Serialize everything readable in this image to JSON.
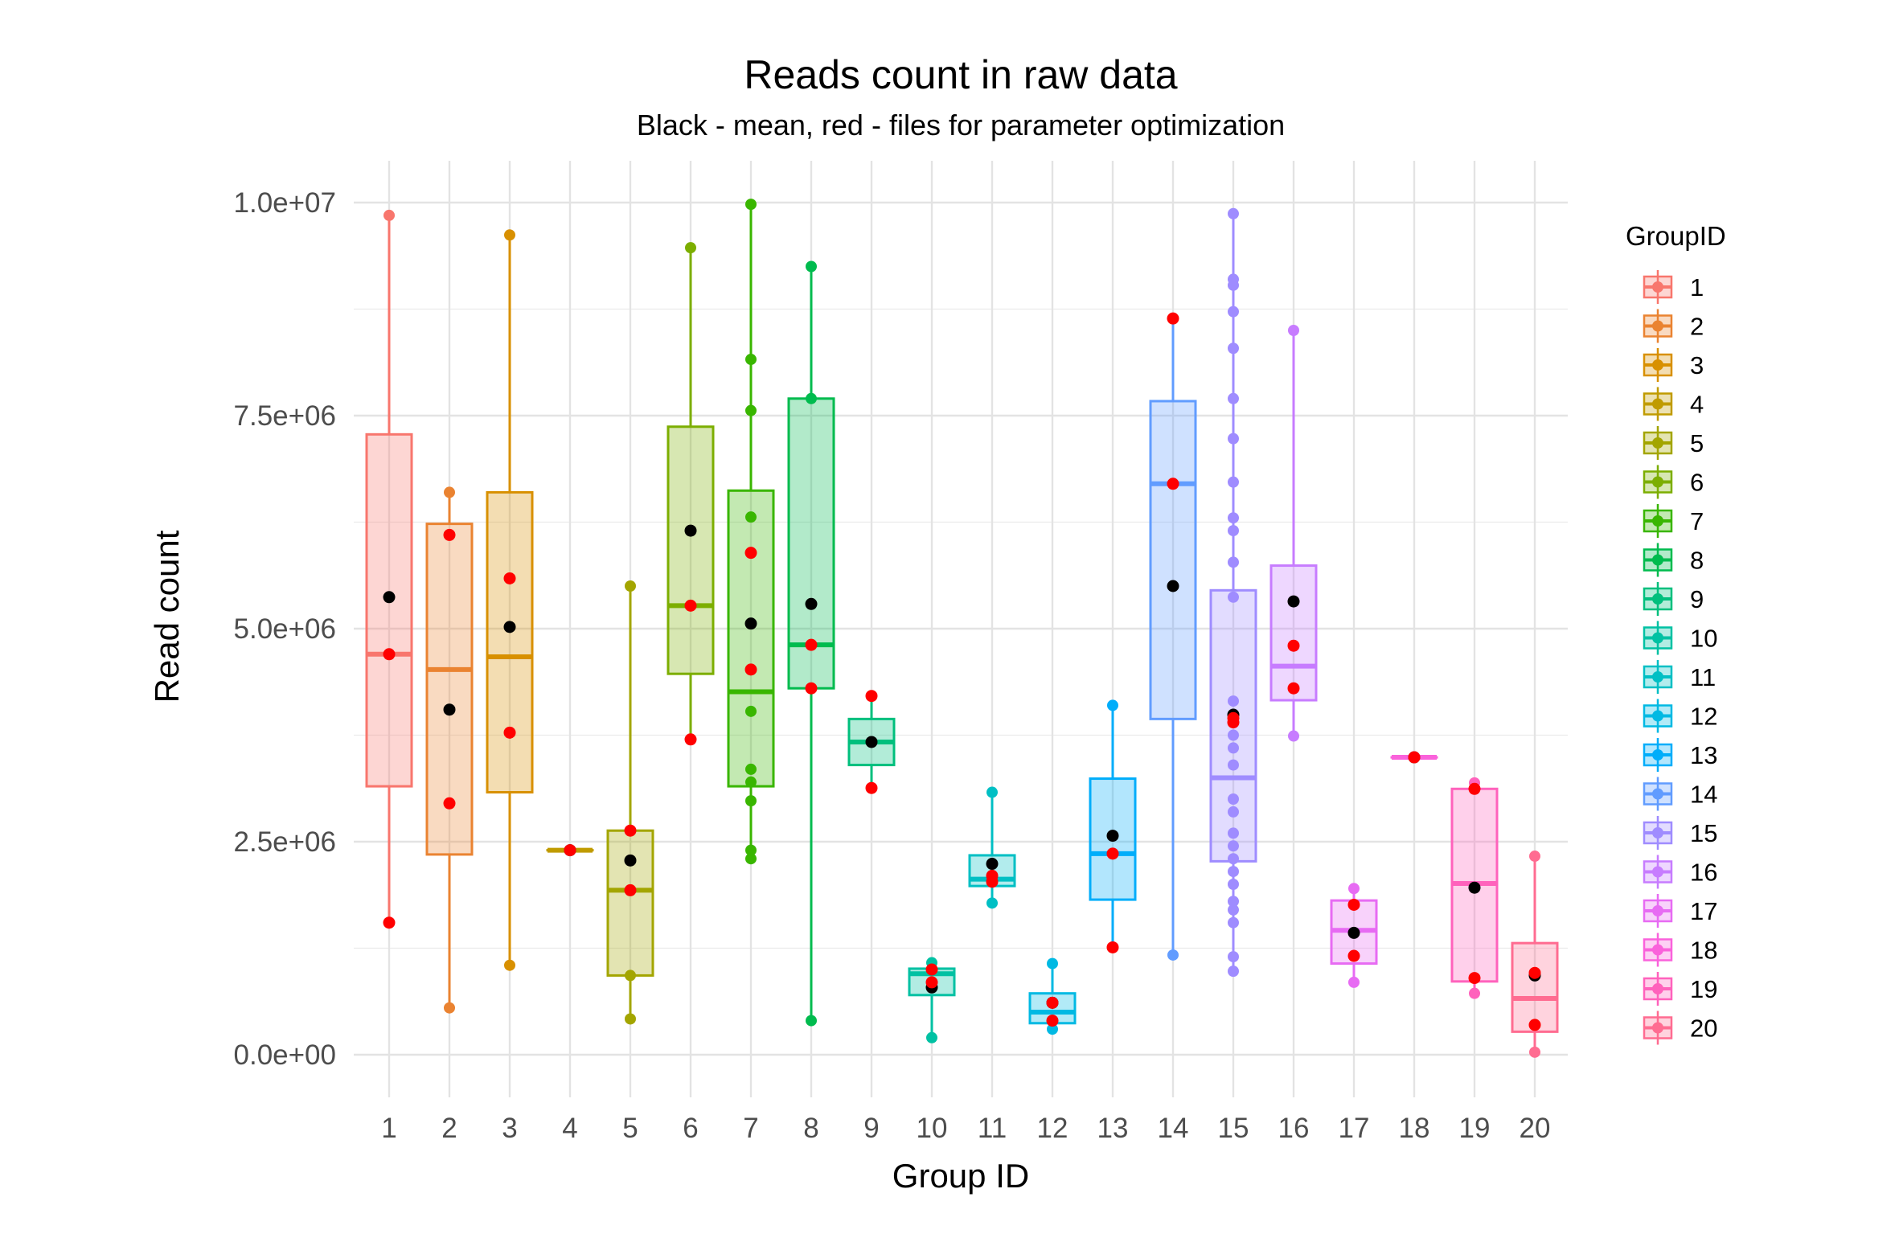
{
  "chart_data": {
    "type": "box",
    "title": "Reads count in raw data",
    "subtitle": "Black - mean, red - files for parameter optimization",
    "xlabel": "Group ID",
    "ylabel": "Read count",
    "ylim": [
      -500000,
      10500000
    ],
    "yticks": [
      0,
      2500000,
      5000000,
      7500000,
      10000000
    ],
    "ytick_labels": [
      "0.0e+00",
      "2.5e+06",
      "5.0e+06",
      "7.5e+06",
      "1.0e+07"
    ],
    "categories": [
      "1",
      "2",
      "3",
      "4",
      "5",
      "6",
      "7",
      "8",
      "9",
      "10",
      "11",
      "12",
      "13",
      "14",
      "15",
      "16",
      "17",
      "18",
      "19",
      "20"
    ],
    "legend_title": "GroupID",
    "legend_position": "right",
    "grid": true,
    "mean_color": "#000000",
    "highlight_color": "#ff0000",
    "series": [
      {
        "name": "1",
        "color": "#F8766D",
        "min": 1550000,
        "q1": 3150000,
        "median": 4700000,
        "q3": 7280000,
        "max": 9850000,
        "mean": 5370000,
        "points": [
          1550000,
          4700000,
          9850000
        ],
        "red": [
          1550000,
          4700000
        ]
      },
      {
        "name": "2",
        "color": "#EA8331",
        "min": 550000,
        "q1": 2350000,
        "median": 4520000,
        "q3": 6230000,
        "max": 6600000,
        "mean": 4050000,
        "points": [
          550000,
          2950000,
          6100000,
          6600000
        ],
        "red": [
          2950000,
          6100000
        ]
      },
      {
        "name": "3",
        "color": "#D89000",
        "min": 1050000,
        "q1": 3080000,
        "median": 4670000,
        "q3": 6600000,
        "max": 9620000,
        "mean": 5020000,
        "points": [
          1050000,
          3780000,
          5590000,
          9620000
        ],
        "red": [
          3780000,
          5590000
        ]
      },
      {
        "name": "4",
        "color": "#C09B00",
        "min": 2400000,
        "q1": 2400000,
        "median": 2400000,
        "q3": 2400000,
        "max": 2400000,
        "mean": 2400000,
        "points": [
          2400000
        ],
        "red": [
          2400000
        ]
      },
      {
        "name": "5",
        "color": "#A3A500",
        "min": 420000,
        "q1": 930000,
        "median": 1930000,
        "q3": 2630000,
        "max": 5500000,
        "mean": 2280000,
        "points": [
          420000,
          930000,
          1930000,
          2630000,
          5500000
        ],
        "red": [
          1930000,
          2630000
        ]
      },
      {
        "name": "6",
        "color": "#7CAE00",
        "min": 3700000,
        "q1": 4470000,
        "median": 5270000,
        "q3": 7370000,
        "max": 9470000,
        "mean": 6150000,
        "points": [
          3700000,
          5270000,
          9470000
        ],
        "red": [
          3700000,
          5270000
        ]
      },
      {
        "name": "7",
        "color": "#39B600",
        "min": 2300000,
        "q1": 3150000,
        "median": 4260000,
        "q3": 6620000,
        "max": 9980000,
        "mean": 5060000,
        "points": [
          2300000,
          2400000,
          2980000,
          3200000,
          3350000,
          4030000,
          4520000,
          5890000,
          6310000,
          7560000,
          8160000,
          9980000
        ],
        "red": [
          4520000,
          5890000
        ]
      },
      {
        "name": "8",
        "color": "#00BB4E",
        "min": 400000,
        "q1": 4300000,
        "median": 4810000,
        "q3": 7700000,
        "max": 9250000,
        "mean": 5290000,
        "points": [
          400000,
          4300000,
          4810000,
          7700000,
          9250000
        ],
        "red": [
          4300000,
          4810000
        ]
      },
      {
        "name": "9",
        "color": "#00BF7D",
        "min": 3130000,
        "q1": 3400000,
        "median": 3670000,
        "q3": 3940000,
        "max": 4210000,
        "mean": 3670000,
        "points": [
          3130000,
          4210000
        ],
        "red": [
          3130000,
          4210000
        ]
      },
      {
        "name": "10",
        "color": "#00C1A3",
        "min": 200000,
        "q1": 700000,
        "median": 950000,
        "q3": 1010000,
        "max": 1080000,
        "mean": 790000,
        "points": [
          200000,
          850000,
          1000000,
          1080000
        ],
        "red": [
          850000,
          1000000
        ]
      },
      {
        "name": "11",
        "color": "#00BFC4",
        "min": 1780000,
        "q1": 1980000,
        "median": 2060000,
        "q3": 2340000,
        "max": 3080000,
        "mean": 2240000,
        "points": [
          1780000,
          2030000,
          2100000,
          3080000
        ],
        "red": [
          2030000,
          2100000
        ]
      },
      {
        "name": "12",
        "color": "#00B9E3",
        "min": 300000,
        "q1": 370000,
        "median": 500000,
        "q3": 720000,
        "max": 1070000,
        "mean": 610000,
        "points": [
          300000,
          400000,
          610000,
          1070000
        ],
        "red": [
          400000,
          610000
        ]
      },
      {
        "name": "13",
        "color": "#00ADFA",
        "min": 1260000,
        "q1": 1820000,
        "median": 2360000,
        "q3": 3240000,
        "max": 4100000,
        "mean": 2570000,
        "points": [
          1260000,
          2360000,
          4100000
        ],
        "red": [
          1260000,
          2360000
        ]
      },
      {
        "name": "14",
        "color": "#619CFF",
        "min": 1170000,
        "q1": 3940000,
        "median": 6700000,
        "q3": 7670000,
        "max": 8640000,
        "mean": 5500000,
        "points": [
          1170000,
          6700000,
          8640000
        ],
        "red": [
          6700000,
          8640000
        ]
      },
      {
        "name": "15",
        "color": "#9F8CFF",
        "min": 980000,
        "q1": 2270000,
        "median": 3250000,
        "q3": 5450000,
        "max": 9870000,
        "mean": 3990000,
        "points": [
          980000,
          1150000,
          1550000,
          1700000,
          1800000,
          2000000,
          2150000,
          2300000,
          2450000,
          2600000,
          2850000,
          3000000,
          3400000,
          3600000,
          3750000,
          3900000,
          4150000,
          5370000,
          5780000,
          6150000,
          6300000,
          6720000,
          7230000,
          7700000,
          8290000,
          8720000,
          9030000,
          9100000,
          9870000
        ],
        "red": [
          3900000,
          3950000
        ]
      },
      {
        "name": "16",
        "color": "#C77CFF",
        "min": 3740000,
        "q1": 4160000,
        "median": 4560000,
        "q3": 5740000,
        "max": 8500000,
        "mean": 5320000,
        "points": [
          3740000,
          4300000,
          4800000,
          8500000
        ],
        "red": [
          4300000,
          4800000
        ]
      },
      {
        "name": "17",
        "color": "#E76BF3",
        "min": 850000,
        "q1": 1070000,
        "median": 1460000,
        "q3": 1810000,
        "max": 1950000,
        "mean": 1430000,
        "points": [
          850000,
          1160000,
          1760000,
          1950000
        ],
        "red": [
          1160000,
          1760000
        ]
      },
      {
        "name": "18",
        "color": "#FA62DB",
        "min": 3490000,
        "q1": 3490000,
        "median": 3490000,
        "q3": 3490000,
        "max": 3490000,
        "mean": 3490000,
        "points": [
          3490000
        ],
        "red": [
          3490000
        ]
      },
      {
        "name": "19",
        "color": "#FF62BC",
        "min": 720000,
        "q1": 860000,
        "median": 2010000,
        "q3": 3120000,
        "max": 3190000,
        "mean": 1960000,
        "points": [
          720000,
          900000,
          3120000,
          3190000
        ],
        "red": [
          900000,
          3120000
        ]
      },
      {
        "name": "20",
        "color": "#FF6C91",
        "min": 30000,
        "q1": 270000,
        "median": 660000,
        "q3": 1310000,
        "max": 2330000,
        "mean": 930000,
        "points": [
          30000,
          350000,
          960000,
          2330000
        ],
        "red": [
          350000,
          960000
        ]
      }
    ]
  }
}
